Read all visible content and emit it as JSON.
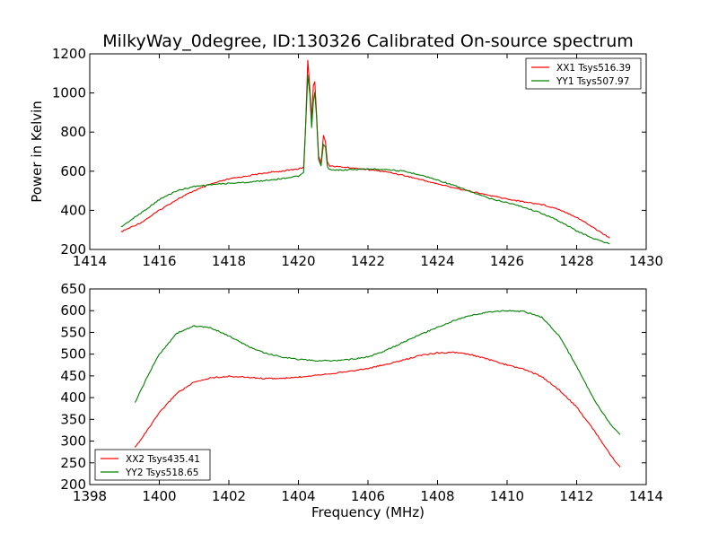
{
  "figure": {
    "title": "MilkyWay_0degree, ID:130326 Calibrated On-source spectrum"
  },
  "chart_data": [
    {
      "type": "line",
      "title": "MilkyWay_0degree, ID:130326 Calibrated On-source spectrum",
      "xlabel": "",
      "ylabel": "Power in Kelvin",
      "xlim": [
        1414,
        1430
      ],
      "ylim": [
        200,
        1200
      ],
      "xticks": [
        1414,
        1416,
        1418,
        1420,
        1422,
        1424,
        1426,
        1428,
        1430
      ],
      "yticks": [
        200,
        400,
        600,
        800,
        1000,
        1200
      ],
      "grid": false,
      "legend_position": "top-right",
      "series": [
        {
          "name": "XX1 Tsys516.39",
          "color": "#ff0000",
          "x": [
            1414.9,
            1415.5,
            1416.0,
            1416.5,
            1417.0,
            1417.5,
            1418.0,
            1418.5,
            1419.0,
            1419.5,
            1420.0,
            1420.15,
            1420.2,
            1420.27,
            1420.33,
            1420.38,
            1420.43,
            1420.47,
            1420.52,
            1420.58,
            1420.65,
            1420.72,
            1420.78,
            1420.83,
            1420.9,
            1421.0,
            1421.5,
            1422.0,
            1422.5,
            1423.0,
            1423.5,
            1424.0,
            1424.5,
            1425.0,
            1425.5,
            1426.0,
            1426.5,
            1427.0,
            1427.5,
            1428.0,
            1428.5,
            1428.95
          ],
          "y": [
            290,
            340,
            400,
            455,
            500,
            535,
            560,
            575,
            590,
            600,
            612,
            620,
            800,
            1165,
            1020,
            870,
            1040,
            1055,
            900,
            680,
            640,
            780,
            750,
            650,
            628,
            625,
            618,
            608,
            598,
            580,
            558,
            535,
            515,
            495,
            476,
            458,
            443,
            430,
            405,
            365,
            310,
            258
          ]
        },
        {
          "name": "YY1 Tsys507.97",
          "color": "#008000",
          "x": [
            1414.9,
            1415.5,
            1416.0,
            1416.5,
            1417.0,
            1417.5,
            1418.0,
            1418.5,
            1419.0,
            1419.5,
            1420.0,
            1420.15,
            1420.2,
            1420.27,
            1420.33,
            1420.38,
            1420.43,
            1420.47,
            1420.52,
            1420.58,
            1420.65,
            1420.72,
            1420.78,
            1420.83,
            1420.9,
            1421.0,
            1421.5,
            1422.0,
            1422.5,
            1423.0,
            1423.5,
            1424.0,
            1424.5,
            1425.0,
            1425.5,
            1426.0,
            1426.5,
            1427.0,
            1427.5,
            1428.0,
            1428.5,
            1428.95
          ],
          "y": [
            315,
            390,
            455,
            500,
            522,
            532,
            538,
            543,
            552,
            562,
            575,
            590,
            800,
            1090,
            990,
            820,
            960,
            1000,
            880,
            660,
            625,
            740,
            720,
            625,
            608,
            605,
            608,
            612,
            610,
            600,
            582,
            555,
            525,
            492,
            460,
            440,
            415,
            385,
            345,
            295,
            255,
            228
          ]
        }
      ]
    },
    {
      "type": "line",
      "title": "",
      "xlabel": "Frequency (MHz)",
      "ylabel": "",
      "xlim": [
        1398,
        1414
      ],
      "ylim": [
        200,
        650
      ],
      "xticks": [
        1398,
        1400,
        1402,
        1404,
        1406,
        1408,
        1410,
        1412,
        1414
      ],
      "yticks": [
        200,
        250,
        300,
        350,
        400,
        450,
        500,
        550,
        600,
        650
      ],
      "grid": false,
      "legend_position": "bottom-left",
      "series": [
        {
          "name": "XX2 Tsys435.41",
          "color": "#ff0000",
          "x": [
            1399.3,
            1399.7,
            1400.0,
            1400.5,
            1401.0,
            1401.5,
            1402.0,
            1402.5,
            1403.0,
            1403.5,
            1404.0,
            1404.5,
            1405.0,
            1405.5,
            1406.0,
            1406.5,
            1407.0,
            1407.5,
            1408.0,
            1408.5,
            1409.0,
            1409.5,
            1410.0,
            1410.5,
            1411.0,
            1411.5,
            1412.0,
            1412.5,
            1413.0,
            1413.25
          ],
          "y": [
            285,
            330,
            365,
            410,
            435,
            446,
            449,
            447,
            444,
            444,
            447,
            452,
            456,
            461,
            467,
            476,
            486,
            497,
            503,
            504,
            498,
            487,
            475,
            465,
            448,
            418,
            378,
            325,
            265,
            240
          ]
        },
        {
          "name": "YY2 Tsys518.65",
          "color": "#008000",
          "x": [
            1399.3,
            1399.7,
            1400.0,
            1400.5,
            1401.0,
            1401.5,
            1402.0,
            1402.5,
            1403.0,
            1403.5,
            1404.0,
            1404.5,
            1405.0,
            1405.5,
            1406.0,
            1406.5,
            1407.0,
            1407.5,
            1408.0,
            1408.5,
            1409.0,
            1409.5,
            1410.0,
            1410.5,
            1411.0,
            1411.5,
            1412.0,
            1412.5,
            1413.0,
            1413.25
          ],
          "y": [
            388,
            455,
            500,
            548,
            565,
            560,
            542,
            520,
            503,
            494,
            488,
            485,
            485,
            488,
            494,
            508,
            527,
            545,
            562,
            578,
            590,
            597,
            600,
            598,
            585,
            542,
            472,
            395,
            335,
            315
          ]
        }
      ]
    }
  ]
}
